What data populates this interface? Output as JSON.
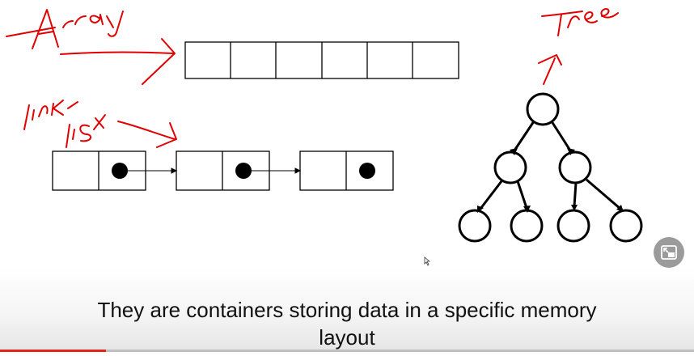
{
  "video": {
    "caption_line1": "They are containers storing data in a specific memory",
    "caption_line2": "layout",
    "progress_fraction": 0.153,
    "colors": {
      "accent_red": "#e62117",
      "ink": "#000000",
      "handwriting": "#e00000"
    }
  },
  "diagram": {
    "annotations": {
      "array": "Array",
      "linked_list_1": "Link",
      "linked_list_2": "List",
      "tree": "Tree"
    }
  },
  "controls": {
    "pip_icon": "picture-in-picture-icon",
    "cursor_icon": "mouse-cursor-icon"
  }
}
